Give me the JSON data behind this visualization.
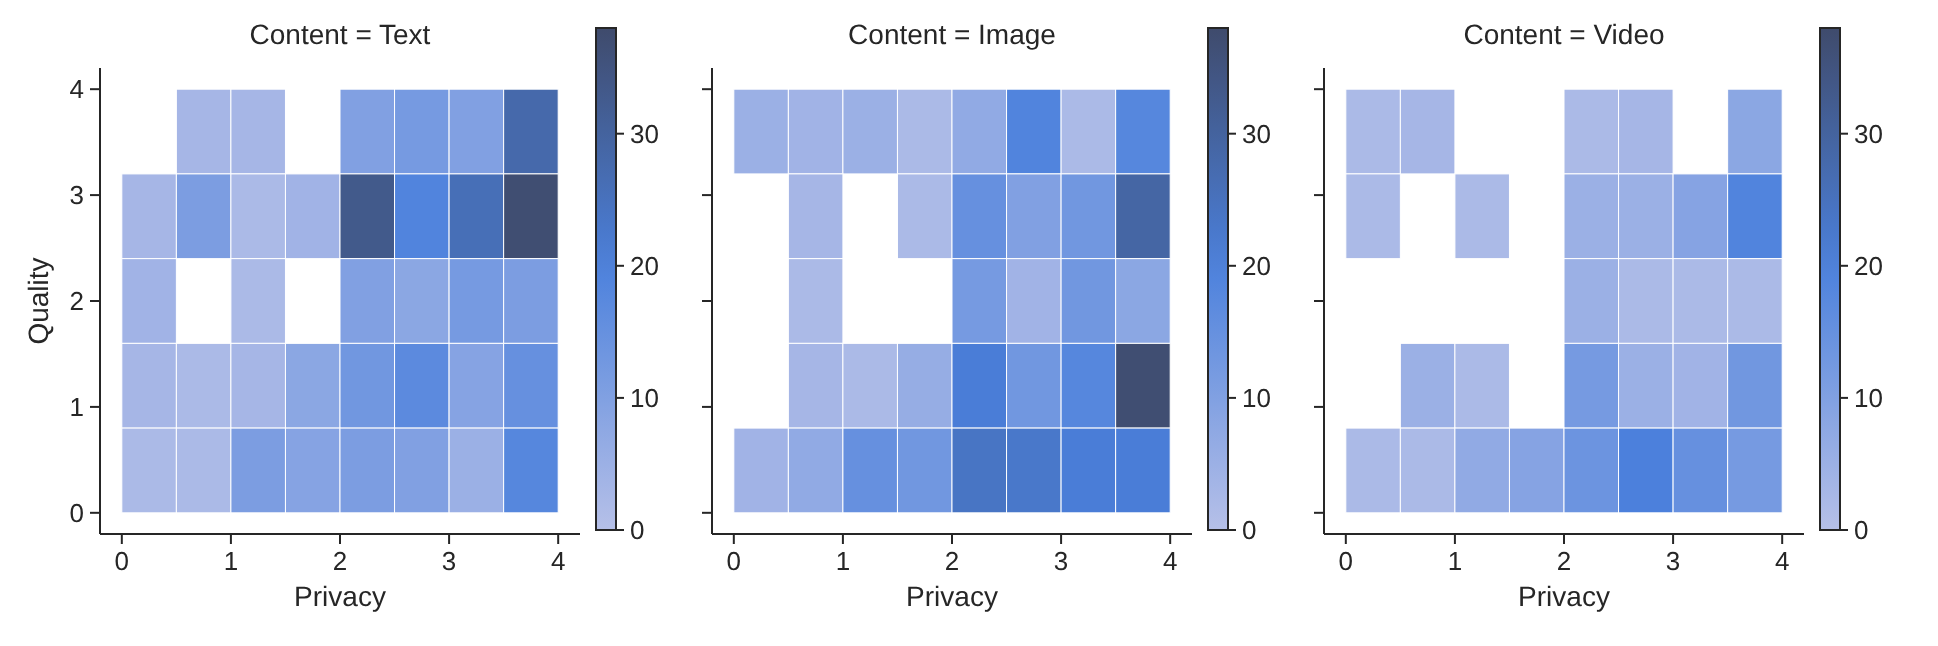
{
  "chart_data": [
    {
      "type": "heatmap",
      "title": "Content = Text",
      "xlabel": "Privacy",
      "ylabel": "Quality",
      "x": [
        0.25,
        0.75,
        1.25,
        1.75,
        2.25,
        2.75,
        3.25,
        3.75
      ],
      "y": [
        3.6,
        2.8,
        2.0,
        1.2,
        0.4
      ],
      "xlim": [
        -0.2,
        4.2
      ],
      "ylim": [
        -0.2,
        4.2
      ],
      "xticks": [
        0,
        1,
        2,
        3,
        4
      ],
      "yticks": [
        0,
        1,
        2,
        3,
        4
      ],
      "clim": [
        0,
        38
      ],
      "cticks": [
        0,
        10,
        20,
        30
      ],
      "cells": [
        [
          null,
          3,
          3,
          null,
          10,
          12,
          10,
          28
        ],
        [
          3,
          11,
          2,
          4,
          33,
          19,
          26,
          37
        ],
        [
          4,
          null,
          2,
          null,
          10,
          8,
          12,
          11
        ],
        [
          3,
          2,
          3,
          8,
          13,
          17,
          9,
          15
        ],
        [
          2,
          2,
          11,
          9,
          11,
          10,
          5,
          18
        ]
      ]
    },
    {
      "type": "heatmap",
      "title": "Content = Image",
      "xlabel": "Privacy",
      "x": [
        0.25,
        0.75,
        1.25,
        1.75,
        2.25,
        2.75,
        3.25,
        3.75
      ],
      "y": [
        3.6,
        2.8,
        2.0,
        1.2,
        0.4
      ],
      "xlim": [
        -0.2,
        4.2
      ],
      "ylim": [
        -0.2,
        4.2
      ],
      "xticks": [
        0,
        1,
        2,
        3,
        4
      ],
      "yticks": [
        0,
        1,
        2,
        3,
        4
      ],
      "tick_labels": "x",
      "clim": [
        0,
        38
      ],
      "cticks": [
        0,
        10,
        20,
        30
      ],
      "cells": [
        [
          5,
          4,
          5,
          2,
          7,
          19,
          2,
          18
        ],
        [
          null,
          3,
          null,
          2,
          15,
          10,
          13,
          29
        ],
        [
          null,
          2,
          null,
          null,
          12,
          4,
          13,
          8
        ],
        [
          null,
          3,
          2,
          6,
          21,
          13,
          18,
          37
        ],
        [
          4,
          7,
          15,
          13,
          24,
          23,
          21,
          21
        ]
      ]
    },
    {
      "type": "heatmap",
      "title": "Content = Video",
      "xlabel": "Privacy",
      "x": [
        0.25,
        0.75,
        1.25,
        1.75,
        2.25,
        2.75,
        3.25,
        3.75
      ],
      "y": [
        3.6,
        2.8,
        2.0,
        1.2,
        0.4
      ],
      "xlim": [
        -0.2,
        4.2
      ],
      "ylim": [
        -0.2,
        4.2
      ],
      "xticks": [
        0,
        1,
        2,
        3,
        4
      ],
      "yticks": [
        0,
        1,
        2,
        3,
        4
      ],
      "tick_labels": "x",
      "clim": [
        0,
        38
      ],
      "cticks": [
        0,
        10,
        20,
        30
      ],
      "cells": [
        [
          2,
          3,
          null,
          null,
          2,
          3,
          null,
          8
        ],
        [
          2,
          null,
          2,
          null,
          5,
          5,
          9,
          19
        ],
        [
          null,
          null,
          null,
          null,
          5,
          2,
          2,
          2
        ],
        [
          null,
          5,
          2,
          null,
          12,
          5,
          4,
          13
        ],
        [
          2,
          2,
          7,
          9,
          14,
          20,
          15,
          12
        ]
      ]
    }
  ]
}
